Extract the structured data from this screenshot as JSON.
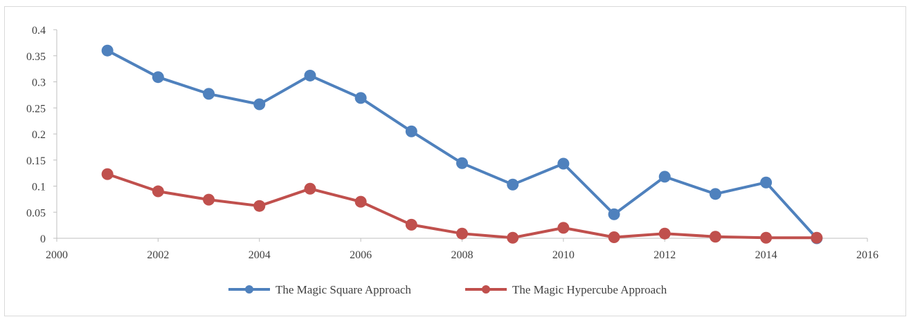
{
  "chart_data": {
    "type": "scatter",
    "title": "",
    "xlabel": "",
    "ylabel": "",
    "xlim": [
      2000,
      2016
    ],
    "ylim": [
      0,
      0.4
    ],
    "x_ticks": [
      "2000",
      "2002",
      "2004",
      "2006",
      "2008",
      "2010",
      "2012",
      "2014",
      "2016"
    ],
    "y_ticks": [
      "0",
      "0.05",
      "0.1",
      "0.15",
      "0.2",
      "0.25",
      "0.3",
      "0.35",
      "0.4"
    ],
    "grid": false,
    "legend_position": "bottom",
    "series": [
      {
        "name": "The Magic Square Approach",
        "color": "#4f81bd",
        "x": [
          2001,
          2002,
          2003,
          2004,
          2005,
          2006,
          2007,
          2008,
          2009,
          2010,
          2011,
          2012,
          2013,
          2014,
          2015
        ],
        "y": [
          0.36,
          0.309,
          0.277,
          0.257,
          0.312,
          0.269,
          0.205,
          0.144,
          0.103,
          0.143,
          0.046,
          0.118,
          0.085,
          0.107,
          0.0
        ]
      },
      {
        "name": "The Magic  Hypercube Approach",
        "color": "#c0504d",
        "x": [
          2001,
          2002,
          2003,
          2004,
          2005,
          2006,
          2007,
          2008,
          2009,
          2010,
          2011,
          2012,
          2013,
          2014,
          2015
        ],
        "y": [
          0.123,
          0.09,
          0.074,
          0.062,
          0.095,
          0.07,
          0.026,
          0.009,
          0.001,
          0.02,
          0.002,
          0.009,
          0.003,
          0.001,
          0.001
        ]
      }
    ]
  }
}
